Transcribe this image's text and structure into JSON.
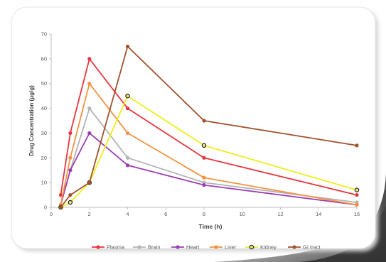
{
  "chart_data": {
    "type": "line",
    "xlabel": "Time (h)",
    "ylabel": "Drug Concentration (μg/g)",
    "xlim": [
      0,
      16
    ],
    "ylim": [
      0,
      70
    ],
    "xticks": [
      0,
      2,
      4,
      6,
      8,
      10,
      12,
      14,
      16
    ],
    "yticks": [
      0,
      10,
      20,
      30,
      40,
      50,
      60,
      70
    ],
    "grid": false,
    "legend_position": "bottom",
    "series": [
      {
        "name": "Plasma",
        "color": "#e8353f",
        "marker": "filled",
        "points": [
          [
            0.5,
            5
          ],
          [
            1,
            30
          ],
          [
            2,
            60
          ],
          [
            4,
            40
          ],
          [
            8,
            20
          ],
          [
            16,
            5
          ]
        ]
      },
      {
        "name": "Brain",
        "color": "#b4b4b4",
        "marker": "filled",
        "points": [
          [
            0.5,
            1
          ],
          [
            1,
            15
          ],
          [
            2,
            40
          ],
          [
            4,
            20
          ],
          [
            8,
            10
          ],
          [
            16,
            2
          ]
        ]
      },
      {
        "name": "Heart",
        "color": "#9b3fb4",
        "marker": "filled",
        "points": [
          [
            0.5,
            1
          ],
          [
            1,
            15
          ],
          [
            2,
            30
          ],
          [
            4,
            17
          ],
          [
            8,
            9
          ],
          [
            16,
            1
          ]
        ]
      },
      {
        "name": "Liver",
        "color": "#f5913f",
        "marker": "filled",
        "points": [
          [
            0.5,
            1
          ],
          [
            1,
            20
          ],
          [
            2,
            50
          ],
          [
            4,
            30
          ],
          [
            8,
            12
          ],
          [
            16,
            1
          ]
        ]
      },
      {
        "name": "Kidney",
        "color": "#eeee1e",
        "marker": "hollow",
        "points": [
          [
            0.5,
            0
          ],
          [
            1,
            2
          ],
          [
            2,
            10
          ],
          [
            4,
            45
          ],
          [
            8,
            25
          ],
          [
            16,
            7
          ]
        ]
      },
      {
        "name": "GI tract",
        "color": "#a0522d",
        "marker": "filled",
        "points": [
          [
            0.5,
            0
          ],
          [
            1,
            5
          ],
          [
            2,
            10
          ],
          [
            4,
            65
          ],
          [
            8,
            35
          ],
          [
            16,
            25
          ]
        ]
      }
    ]
  }
}
